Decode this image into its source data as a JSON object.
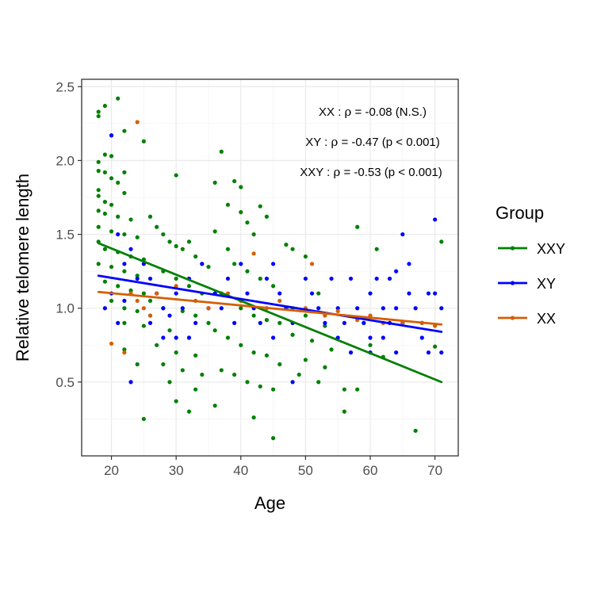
{
  "chart_data": {
    "type": "scatter",
    "title": "",
    "xlabel": "Age",
    "ylabel": "Relative telomere length",
    "xlim": [
      15.4,
      73.6
    ],
    "ylim": [
      0.0,
      2.55
    ],
    "x_ticks": [
      20,
      30,
      40,
      50,
      60,
      70
    ],
    "y_ticks": [
      0.5,
      1.0,
      1.5,
      2.0,
      2.5
    ],
    "x_tick_labels": [
      "20",
      "30",
      "40",
      "50",
      "60",
      "70"
    ],
    "y_tick_labels": [
      "0.5",
      "1.0",
      "1.5",
      "2.0",
      "2.5"
    ],
    "grid": true,
    "legend": {
      "title": "Group",
      "position": "right",
      "entries": [
        "XXY",
        "XY",
        "XX"
      ]
    },
    "annotations": [
      {
        "group": "XX",
        "sep": " : ",
        "rho": "ρ",
        "rest": " = -0.08 (N.S.)"
      },
      {
        "group": "XY",
        "sep": " : ",
        "rho": "ρ",
        "rest": " = -0.47 (p < 0.001)"
      },
      {
        "group": "XXY",
        "sep": " : ",
        "rho": "ρ",
        "rest": " = -0.53 (p < 0.001)"
      }
    ],
    "series": [
      {
        "name": "XXY",
        "color": "#008000",
        "trend": {
          "x": [
            18,
            71
          ],
          "y": [
            1.44,
            0.5
          ]
        },
        "points": [
          [
            18,
            2.3
          ],
          [
            18,
            2.33
          ],
          [
            19,
            2.37
          ],
          [
            21,
            2.42
          ],
          [
            20,
            2.17
          ],
          [
            22,
            2.2
          ],
          [
            19,
            2.04
          ],
          [
            20,
            2.03
          ],
          [
            18,
            1.99
          ],
          [
            18,
            1.93
          ],
          [
            19,
            1.92
          ],
          [
            22,
            1.92
          ],
          [
            25,
            2.13
          ],
          [
            20,
            1.88
          ],
          [
            21,
            1.85
          ],
          [
            22,
            1.78
          ],
          [
            18,
            1.8
          ],
          [
            18,
            1.76
          ],
          [
            19,
            1.72
          ],
          [
            20,
            1.7
          ],
          [
            18,
            1.66
          ],
          [
            19,
            1.64
          ],
          [
            21,
            1.62
          ],
          [
            23,
            1.6
          ],
          [
            18,
            1.55
          ],
          [
            20,
            1.52
          ],
          [
            22,
            1.5
          ],
          [
            24,
            1.48
          ],
          [
            18,
            1.45
          ],
          [
            19,
            1.4
          ],
          [
            21,
            1.38
          ],
          [
            23,
            1.35
          ],
          [
            25,
            1.33
          ],
          [
            18,
            1.3
          ],
          [
            20,
            1.28
          ],
          [
            22,
            1.25
          ],
          [
            24,
            1.22
          ],
          [
            19,
            1.18
          ],
          [
            21,
            1.15
          ],
          [
            23,
            1.12
          ],
          [
            25,
            1.1
          ],
          [
            20,
            1.05
          ],
          [
            22,
            1.0
          ],
          [
            24,
            0.98
          ],
          [
            26,
            0.95
          ],
          [
            22,
            0.9
          ],
          [
            25,
            0.88
          ],
          [
            22,
            0.72
          ],
          [
            24,
            0.62
          ],
          [
            25,
            0.25
          ],
          [
            26,
            1.62
          ],
          [
            27,
            1.55
          ],
          [
            28,
            1.5
          ],
          [
            29,
            1.45
          ],
          [
            30,
            1.9
          ],
          [
            30,
            1.42
          ],
          [
            31,
            1.4
          ],
          [
            32,
            1.45
          ],
          [
            33,
            1.35
          ],
          [
            34,
            1.3
          ],
          [
            35,
            1.28
          ],
          [
            28,
            1.25
          ],
          [
            30,
            1.2
          ],
          [
            32,
            1.15
          ],
          [
            34,
            1.1
          ],
          [
            26,
            1.05
          ],
          [
            28,
            1.0
          ],
          [
            31,
            0.98
          ],
          [
            33,
            0.95
          ],
          [
            35,
            0.9
          ],
          [
            29,
            0.85
          ],
          [
            32,
            0.8
          ],
          [
            27,
            0.75
          ],
          [
            30,
            0.7
          ],
          [
            33,
            0.68
          ],
          [
            28,
            0.62
          ],
          [
            31,
            0.58
          ],
          [
            34,
            0.55
          ],
          [
            29,
            0.5
          ],
          [
            33,
            0.45
          ],
          [
            30,
            0.37
          ],
          [
            32,
            0.3
          ],
          [
            36,
            1.85
          ],
          [
            37,
            2.06
          ],
          [
            38,
            1.7
          ],
          [
            39,
            1.86
          ],
          [
            40,
            1.82
          ],
          [
            40,
            1.65
          ],
          [
            41,
            1.58
          ],
          [
            42,
            1.5
          ],
          [
            43,
            1.69
          ],
          [
            44,
            1.62
          ],
          [
            36,
            1.52
          ],
          [
            38,
            1.4
          ],
          [
            39,
            1.3
          ],
          [
            41,
            1.25
          ],
          [
            43,
            1.2
          ],
          [
            45,
            1.15
          ],
          [
            37,
            1.1
          ],
          [
            40,
            1.0
          ],
          [
            42,
            0.95
          ],
          [
            44,
            0.92
          ],
          [
            46,
            0.9
          ],
          [
            36,
            0.85
          ],
          [
            38,
            0.8
          ],
          [
            40,
            0.75
          ],
          [
            42,
            0.7
          ],
          [
            44,
            0.68
          ],
          [
            46,
            0.62
          ],
          [
            37,
            0.58
          ],
          [
            39,
            0.55
          ],
          [
            41,
            0.5
          ],
          [
            43,
            0.47
          ],
          [
            45,
            0.45
          ],
          [
            36,
            0.34
          ],
          [
            42,
            0.26
          ],
          [
            45,
            0.12
          ],
          [
            47,
            1.43
          ],
          [
            48,
            1.4
          ],
          [
            50,
            1.35
          ],
          [
            52,
            1.1
          ],
          [
            48,
            1.0
          ],
          [
            50,
            0.95
          ],
          [
            53,
            0.88
          ],
          [
            48,
            0.82
          ],
          [
            51,
            0.78
          ],
          [
            54,
            0.72
          ],
          [
            50,
            0.65
          ],
          [
            53,
            0.6
          ],
          [
            49,
            0.55
          ],
          [
            52,
            0.5
          ],
          [
            56,
            0.45
          ],
          [
            58,
            0.45
          ],
          [
            56,
            0.3
          ],
          [
            58,
            1.55
          ],
          [
            61,
            1.4
          ],
          [
            59,
            0.9
          ],
          [
            60,
            0.75
          ],
          [
            62,
            0.67
          ],
          [
            67,
            0.17
          ],
          [
            70,
            0.74
          ],
          [
            71,
            1.45
          ]
        ]
      },
      {
        "name": "XY",
        "color": "#0000ff",
        "trend": {
          "x": [
            18,
            71
          ],
          "y": [
            1.22,
            0.84
          ]
        },
        "points": [
          [
            20,
            2.17
          ],
          [
            21,
            1.5
          ],
          [
            22,
            1.3
          ],
          [
            20,
            1.1
          ],
          [
            19,
            1.0
          ],
          [
            21,
            0.9
          ],
          [
            23,
            1.4
          ],
          [
            24,
            1.2
          ],
          [
            22,
            1.05
          ],
          [
            23,
            0.5
          ],
          [
            25,
            1.3
          ],
          [
            26,
            1.2
          ],
          [
            27,
            1.1
          ],
          [
            28,
            1.0
          ],
          [
            29,
            0.95
          ],
          [
            26,
            0.9
          ],
          [
            28,
            0.8
          ],
          [
            30,
            1.1
          ],
          [
            32,
            1.2
          ],
          [
            34,
            1.3
          ],
          [
            31,
            1.0
          ],
          [
            33,
            0.9
          ],
          [
            35,
            1.0
          ],
          [
            30,
            0.8
          ],
          [
            32,
            0.8
          ],
          [
            36,
            1.1
          ],
          [
            38,
            1.2
          ],
          [
            37,
            1.0
          ],
          [
            39,
            0.9
          ],
          [
            40,
            1.3
          ],
          [
            41,
            1.1
          ],
          [
            42,
            1.0
          ],
          [
            43,
            0.9
          ],
          [
            44,
            1.2
          ],
          [
            45,
            1.3
          ],
          [
            46,
            1.1
          ],
          [
            47,
            1.0
          ],
          [
            48,
            0.9
          ],
          [
            45,
            0.8
          ],
          [
            48,
            0.5
          ],
          [
            50,
            1.2
          ],
          [
            51,
            1.1
          ],
          [
            52,
            1.0
          ],
          [
            53,
            0.9
          ],
          [
            54,
            1.2
          ],
          [
            55,
            1.0
          ],
          [
            56,
            0.9
          ],
          [
            55,
            0.8
          ],
          [
            57,
            1.2
          ],
          [
            58,
            1.0
          ],
          [
            59,
            0.9
          ],
          [
            60,
            1.1
          ],
          [
            61,
            1.2
          ],
          [
            62,
            1.0
          ],
          [
            63,
            0.9
          ],
          [
            64,
            1.0
          ],
          [
            65,
            0.9
          ],
          [
            60,
            0.8
          ],
          [
            62,
            0.8
          ],
          [
            64,
            0.7
          ],
          [
            66,
            1.1
          ],
          [
            67,
            1.0
          ],
          [
            68,
            0.9
          ],
          [
            69,
            1.1
          ],
          [
            70,
            1.6
          ],
          [
            71,
            1.0
          ],
          [
            70,
            1.1
          ],
          [
            68,
            0.8
          ],
          [
            69,
            0.7
          ],
          [
            71,
            0.7
          ],
          [
            57,
            0.7
          ],
          [
            60,
            0.7
          ],
          [
            65,
            1.5
          ],
          [
            66,
            1.3
          ],
          [
            63,
            1.2
          ],
          [
            64,
            1.25
          ]
        ]
      },
      {
        "name": "XX",
        "color": "#d55e00",
        "trend": {
          "x": [
            18,
            71
          ],
          "y": [
            1.11,
            0.89
          ]
        },
        "points": [
          [
            24,
            2.26
          ],
          [
            23,
            1.1
          ],
          [
            24,
            1.05
          ],
          [
            25,
            1.0
          ],
          [
            26,
            0.95
          ],
          [
            20,
            0.76
          ],
          [
            22,
            0.7
          ],
          [
            27,
            1.1
          ],
          [
            30,
            1.15
          ],
          [
            33,
            1.05
          ],
          [
            35,
            1.0
          ],
          [
            38,
            1.1
          ],
          [
            40,
            1.05
          ],
          [
            42,
            1.37
          ],
          [
            44,
            1.0
          ],
          [
            46,
            1.05
          ],
          [
            50,
            1.0
          ],
          [
            51,
            1.3
          ],
          [
            53,
            0.95
          ],
          [
            55,
            0.98
          ],
          [
            58,
            0.92
          ],
          [
            60,
            0.95
          ],
          [
            62,
            0.9
          ],
          [
            65,
            0.9
          ],
          [
            68,
            0.9
          ],
          [
            70,
            0.88
          ]
        ]
      }
    ]
  }
}
